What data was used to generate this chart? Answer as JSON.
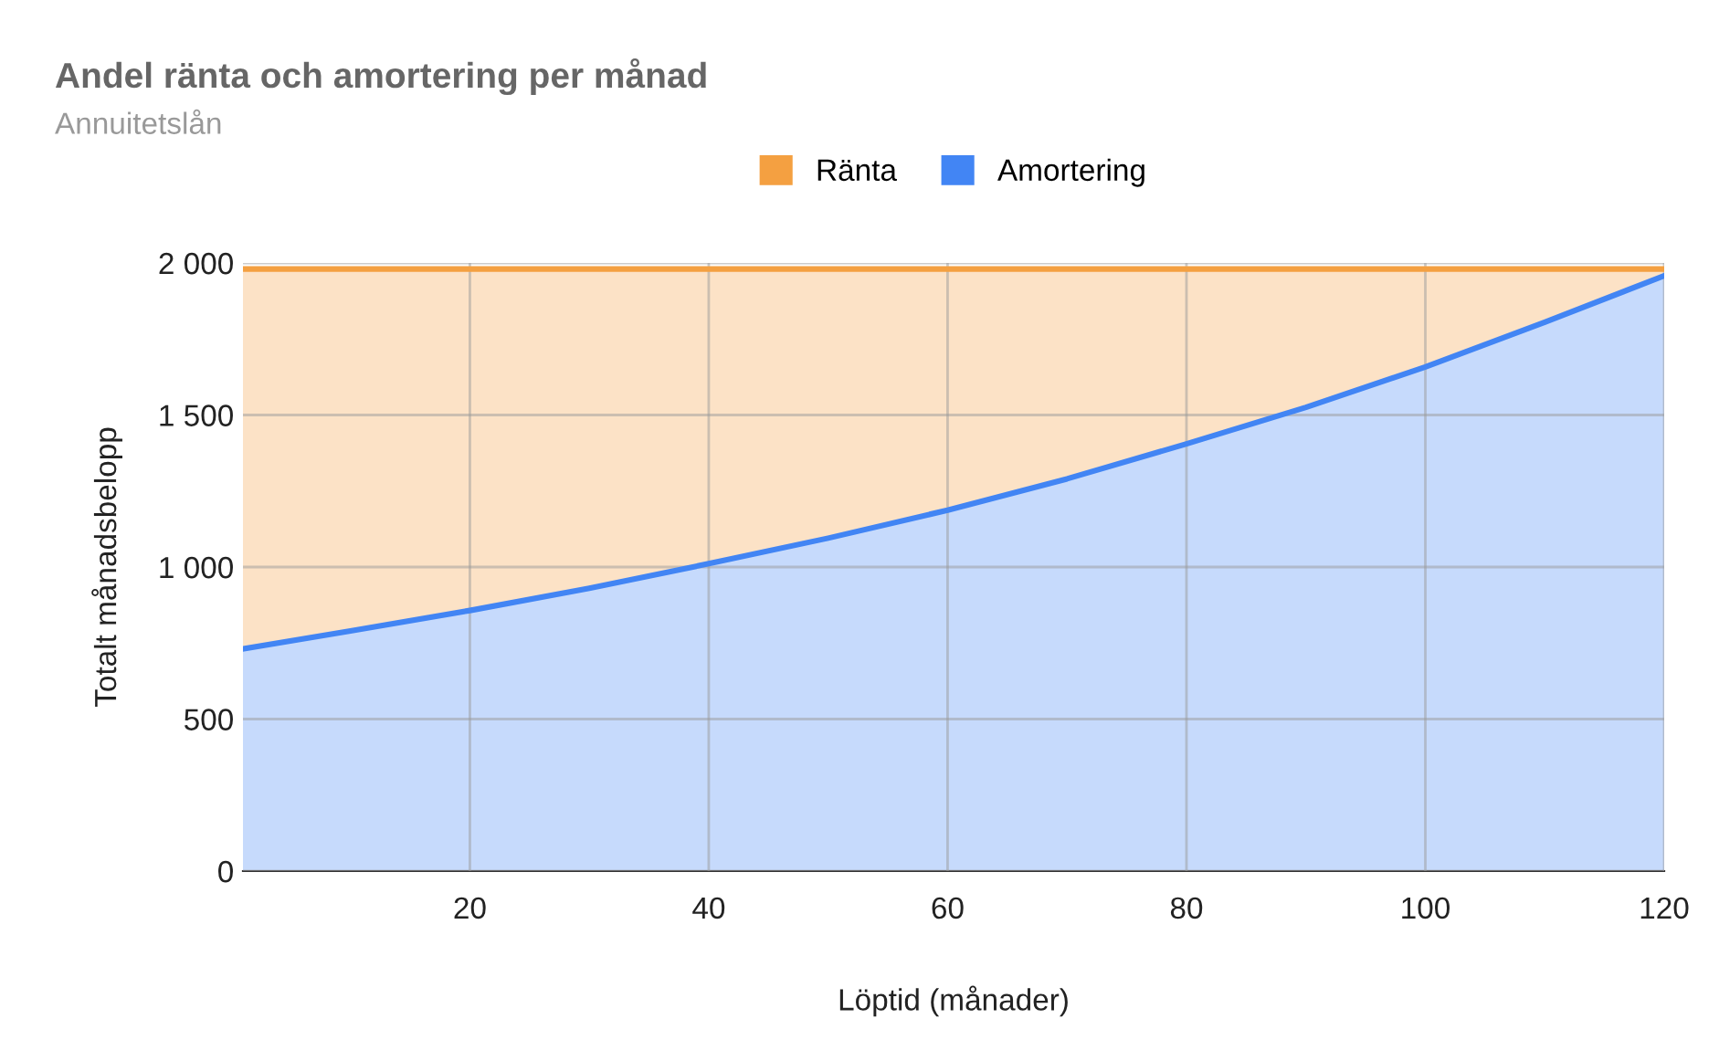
{
  "chart_data": {
    "type": "area",
    "title": "Andel ränta och amortering per månad",
    "subtitle": "Annuitetslån",
    "xlabel": "Löptid (månader)",
    "ylabel": "Totalt månadsbelopp",
    "stacked": true,
    "x": [
      1,
      10,
      20,
      30,
      40,
      50,
      60,
      70,
      80,
      90,
      100,
      110,
      120
    ],
    "series": [
      {
        "name": "Amortering",
        "color": "#4285f4",
        "values": [
          731,
          790,
          857,
          930,
          1011,
          1095,
          1187,
          1290,
          1405,
          1525,
          1658,
          1805,
          1958
        ]
      },
      {
        "name": "Ränta",
        "color": "#f4a041",
        "values": [
          1249,
          1190,
          1123,
          1050,
          969,
          885,
          793,
          690,
          575,
          455,
          322,
          175,
          22
        ]
      }
    ],
    "xlim": [
      1,
      120
    ],
    "xticks": [
      20,
      40,
      60,
      80,
      100,
      120
    ],
    "ylim": [
      0,
      2000
    ],
    "yticks": [
      0,
      500,
      {
        "value": 1000,
        "label": "1 000"
      },
      {
        "value": 1500,
        "label": "1 500"
      },
      {
        "value": 2000,
        "label": "2 000"
      }
    ],
    "grid": true,
    "legend": "top"
  }
}
